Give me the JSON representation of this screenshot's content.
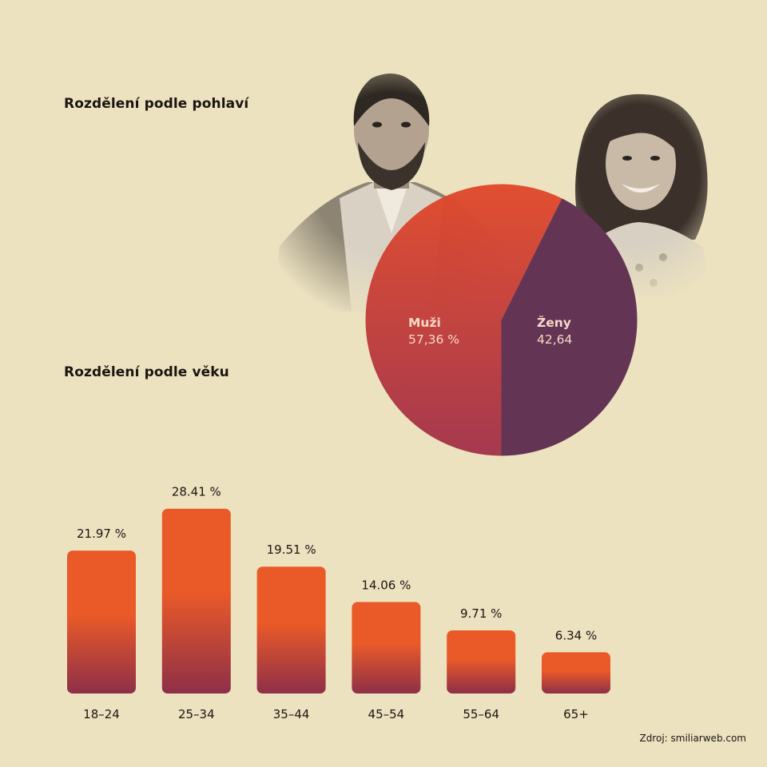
{
  "gender_section": {
    "title": "Rozdělení podle pohlaví"
  },
  "age_section": {
    "title": "Rozdělení podle věku"
  },
  "source": "Zdroj: smiliarweb.com",
  "colors": {
    "background": "#ece2c0",
    "bar_top": "#ea5a28",
    "bar_bottom": "#8e2f48",
    "pie_men_top": "#e14a2c",
    "pie_men_bottom": "#a3344b",
    "pie_women": "#633453"
  },
  "chart_data": [
    {
      "type": "pie",
      "title": "Rozdělení podle pohlaví",
      "slices": [
        {
          "name": "Muži",
          "value": 57.36,
          "label": "57,36 %"
        },
        {
          "name": "Ženy",
          "value": 42.64,
          "label": "42,64"
        }
      ]
    },
    {
      "type": "bar",
      "title": "Rozdělení podle věku",
      "categories": [
        "18–24",
        "25–34",
        "35–44",
        "45–54",
        "55–64",
        "65+"
      ],
      "values": [
        21.97,
        28.41,
        19.51,
        14.06,
        9.71,
        6.34
      ],
      "value_labels": [
        "21.97 %",
        "28.41 %",
        "19.51 %",
        "14.06 %",
        "9.71 %",
        "6.34 %"
      ],
      "grid": false
    }
  ]
}
